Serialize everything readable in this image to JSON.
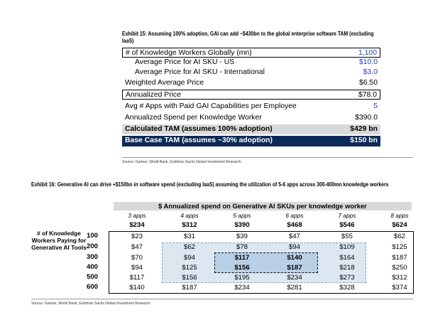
{
  "exhibit15": {
    "title": "Exhibit 15: Assuming 100% adoption, GAI can add ~$430bn to the global enterprise software TAM (excluding IaaS)",
    "rows": [
      {
        "label": "# of Knowledge Workers Globally (mn)",
        "value": "1,100"
      },
      {
        "label": "Average Price for AI SKU - US",
        "value": "$10.0"
      },
      {
        "label": "Average Price for AI SKU - International",
        "value": "$3.0"
      },
      {
        "label": "Weighted Average Price",
        "value": "$6.50"
      },
      {
        "label": "Annualized Price",
        "value": "$78.0"
      },
      {
        "label": "Avg # Apps with Paid GAI Capabilities per Employee",
        "value": "5"
      },
      {
        "label": "Annualized Spend per Knowledge Worker",
        "value": "$390.0"
      },
      {
        "label": "Calculated TAM (assumes 100% adoption)",
        "value": "$429 bn"
      },
      {
        "label": "Base Case TAM (assumes ~30% adoption)",
        "value": "$150 bn"
      }
    ],
    "source": "Source: Gartner, World Bank, Goldman Sachs Global Investment Research"
  },
  "exhibit16": {
    "title": "Exhibit 16: Generative AI can drive +$150bn in software spend (excluding IaaS) assuming the utilization of 5-6 apps across 300-400mn knowledge workers",
    "header": "$ Annualized spend on Generative AI SKUs per knowledge worker",
    "columns": [
      {
        "apps": "3 apps",
        "price": "$234"
      },
      {
        "apps": "4 apps",
        "price": "$312"
      },
      {
        "apps": "5 apps",
        "price": "$390"
      },
      {
        "apps": "6 apps",
        "price": "$468"
      },
      {
        "apps": "7 apps",
        "price": "$546"
      },
      {
        "apps": "8 apps",
        "price": "$624"
      }
    ],
    "row_axis_label": "# of Knowledge Workers Paying for Generative AI Tools",
    "rows": [
      {
        "label": "100",
        "values": [
          "$23",
          "$31",
          "$39",
          "$47",
          "$55",
          "$62"
        ]
      },
      {
        "label": "200",
        "values": [
          "$47",
          "$62",
          "$78",
          "$94",
          "$109",
          "$125"
        ]
      },
      {
        "label": "300",
        "values": [
          "$70",
          "$94",
          "$117",
          "$140",
          "$164",
          "$187"
        ]
      },
      {
        "label": "400",
        "values": [
          "$94",
          "$125",
          "$156",
          "$187",
          "$218",
          "$250"
        ]
      },
      {
        "label": "500",
        "values": [
          "$117",
          "$156",
          "$195",
          "$234",
          "$273",
          "$312"
        ]
      },
      {
        "label": "600",
        "values": [
          "$140",
          "$187",
          "$234",
          "$281",
          "$328",
          "$374"
        ]
      }
    ],
    "source": "Source: Gartner, World Bank, Goldman Sachs Global Investment Research"
  }
}
